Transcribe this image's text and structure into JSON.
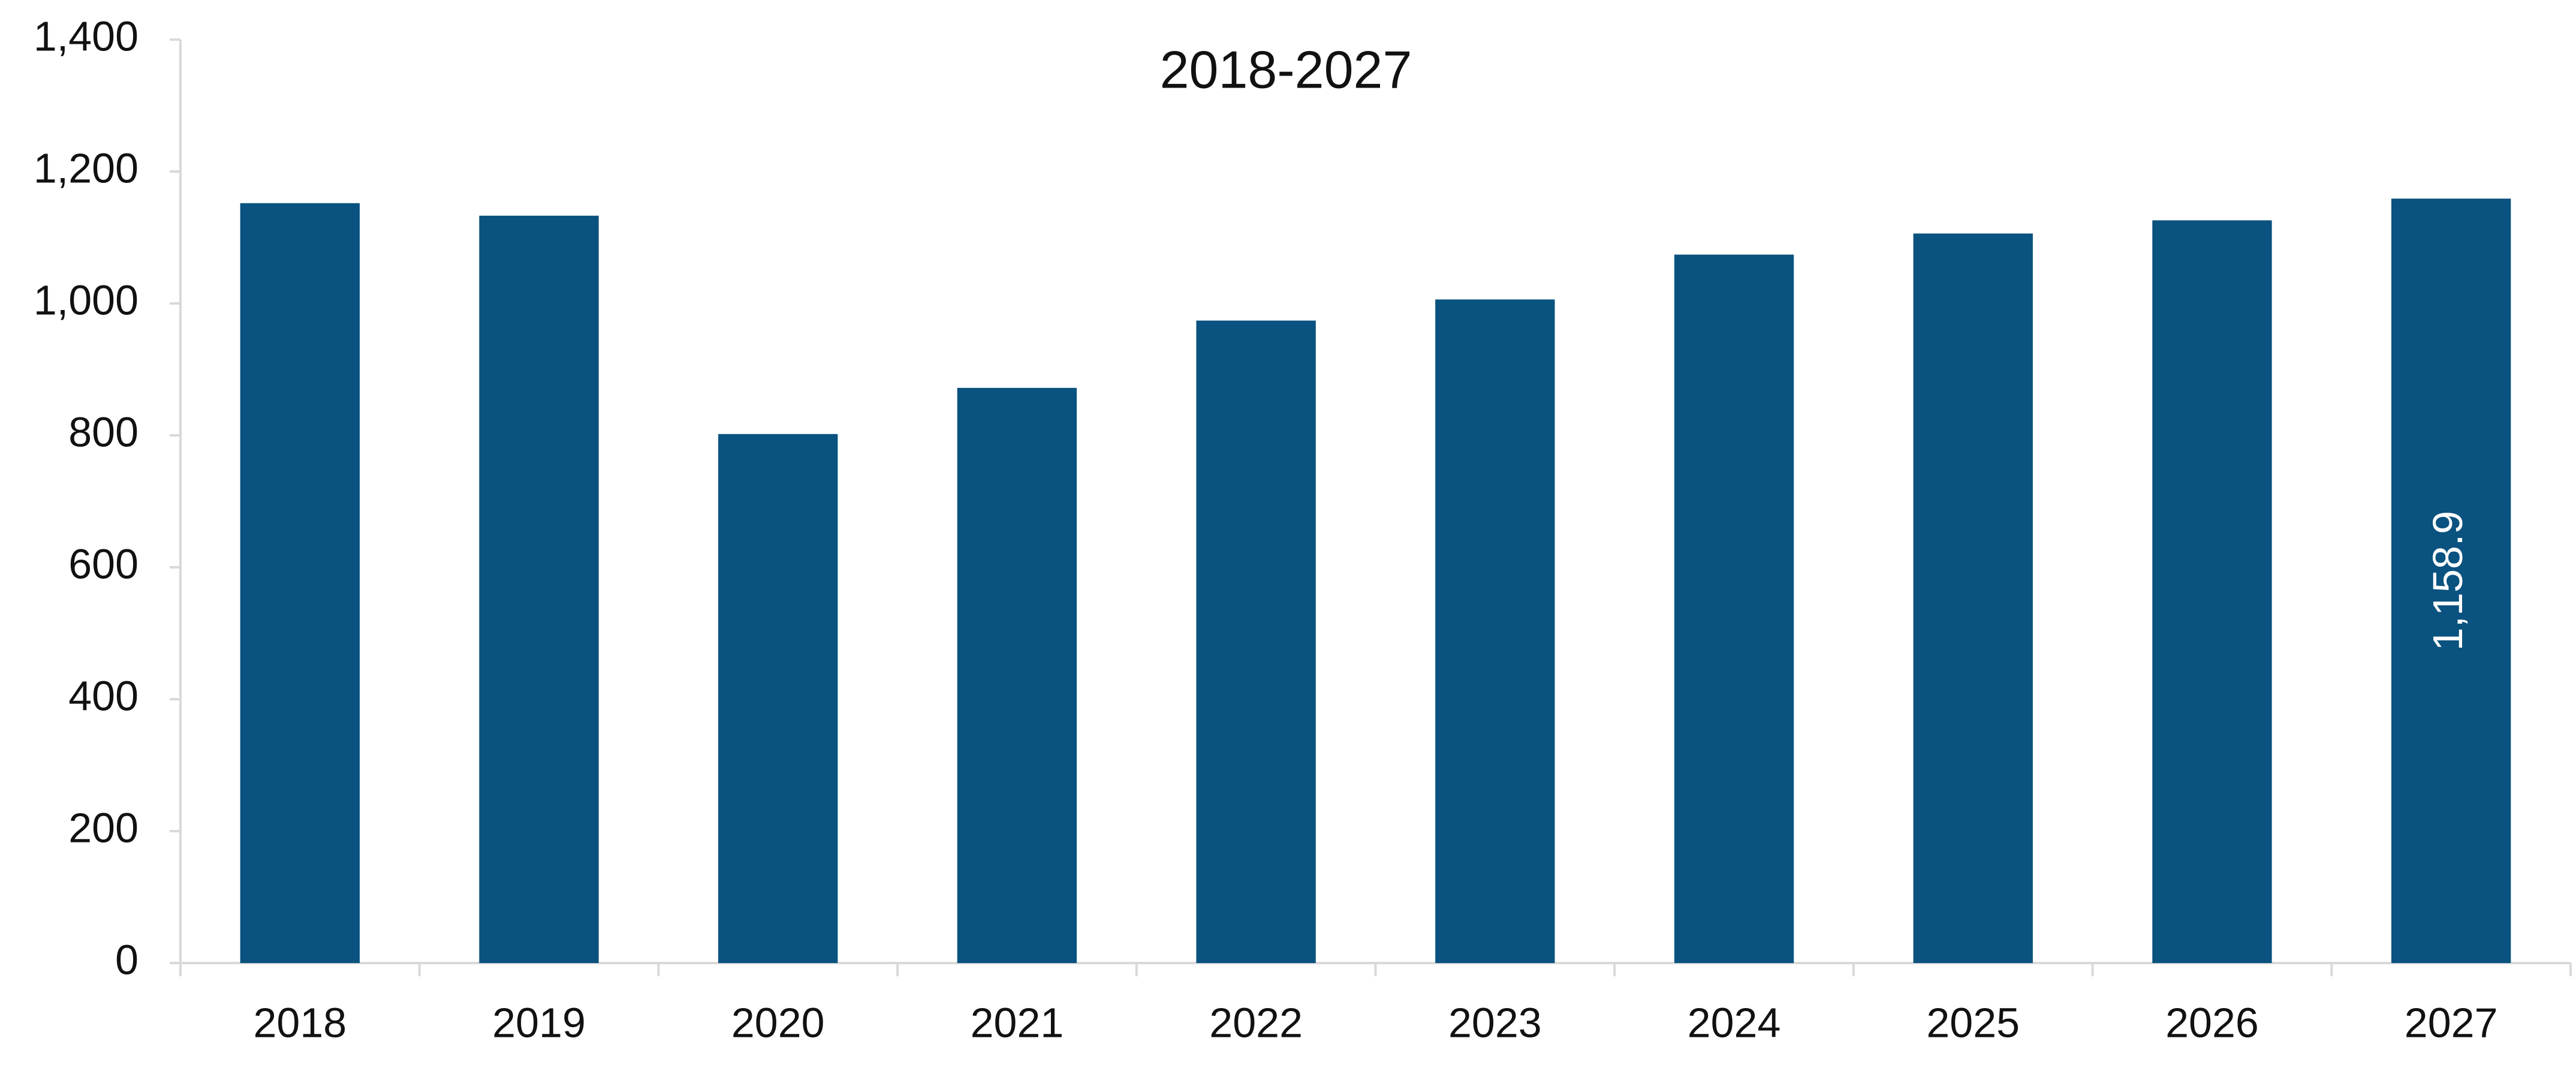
{
  "chart_data": {
    "type": "bar",
    "title": "2018-2027",
    "categories": [
      "2018",
      "2019",
      "2020",
      "2021",
      "2022",
      "2023",
      "2024",
      "2025",
      "2026",
      "2027"
    ],
    "values": [
      1152,
      1133,
      802,
      872,
      974,
      1006,
      1074,
      1106,
      1126,
      1158.9
    ],
    "value_labels": [
      null,
      null,
      null,
      null,
      null,
      null,
      null,
      null,
      null,
      "1,158.9"
    ],
    "color": "#0a527f",
    "ylim": [
      0,
      1400
    ],
    "yticks": [
      0,
      200,
      400,
      600,
      800,
      {
        "value": 1000,
        "label": "1,000"
      },
      {
        "value": 1200,
        "label": "1,200"
      },
      {
        "value": 1400,
        "label": "1,400"
      }
    ],
    "grid": false
  }
}
